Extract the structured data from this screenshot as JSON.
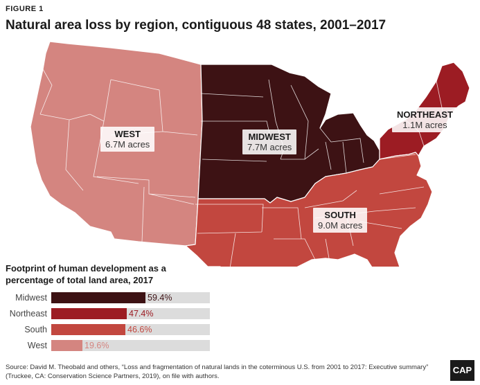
{
  "figure_label": "FIGURE 1",
  "title": "Natural area loss by region, contiguous 48 states, 2001–2017",
  "colors": {
    "midwest": "#3d1214",
    "northeast": "#9c1c23",
    "south": "#c2473f",
    "west": "#d48580",
    "track": "#dcdcdc"
  },
  "regions": [
    {
      "name": "WEST",
      "value": "6.7M acres"
    },
    {
      "name": "MIDWEST",
      "value": "7.7M acres"
    },
    {
      "name": "NORTHEAST",
      "value": "1.1M acres"
    },
    {
      "name": "SOUTH",
      "value": "9.0M acres"
    }
  ],
  "chart_heading": "Footprint of human development as a percentage of total land area, 2017",
  "chart_data": {
    "type": "bar",
    "categories": [
      "Midwest",
      "Northeast",
      "South",
      "West"
    ],
    "values": [
      59.4,
      47.4,
      46.6,
      19.6
    ],
    "value_labels": [
      "59.4%",
      "47.4%",
      "46.6%",
      "19.6%"
    ],
    "ylim": [
      0,
      100
    ]
  },
  "source": "Source: David M. Theobald and others, “Loss and fragmentation of natural lands in the coterminous U.S. from 2001 to 2017: Executive summary” (Truckee, CA: Conservation Science Partners, 2019), on file with authors.",
  "logo": "CAP"
}
